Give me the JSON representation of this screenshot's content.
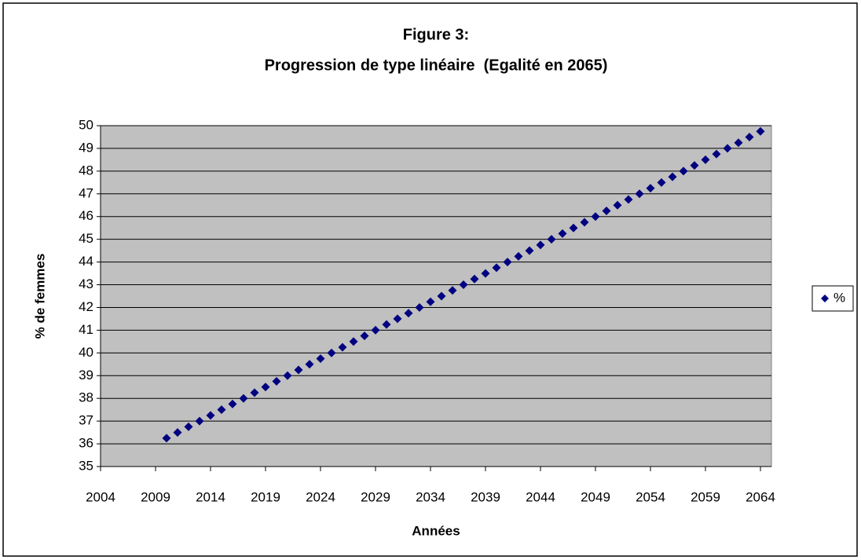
{
  "chart_data": {
    "type": "scatter",
    "title": [
      "Figure 3:",
      "Progression de type linéaire  (Egalité en 2065)"
    ],
    "xlabel": "Années",
    "ylabel": "% de femmes",
    "x": [
      2010,
      2011,
      2012,
      2013,
      2014,
      2015,
      2016,
      2017,
      2018,
      2019,
      2020,
      2021,
      2022,
      2023,
      2024,
      2025,
      2026,
      2027,
      2028,
      2029,
      2030,
      2031,
      2032,
      2033,
      2034,
      2035,
      2036,
      2037,
      2038,
      2039,
      2040,
      2041,
      2042,
      2043,
      2044,
      2045,
      2046,
      2047,
      2048,
      2049,
      2050,
      2051,
      2052,
      2053,
      2054,
      2055,
      2056,
      2057,
      2058,
      2059,
      2060,
      2061,
      2062,
      2063,
      2064
    ],
    "series": [
      {
        "name": "%",
        "color": "#000080",
        "values": [
          36.25,
          36.5,
          36.75,
          37,
          37.25,
          37.5,
          37.75,
          38,
          38.25,
          38.5,
          38.75,
          39,
          39.25,
          39.5,
          39.75,
          40,
          40.25,
          40.5,
          40.75,
          41,
          41.25,
          41.5,
          41.75,
          42,
          42.25,
          42.5,
          42.75,
          43,
          43.25,
          43.5,
          43.75,
          44,
          44.25,
          44.5,
          44.75,
          45,
          45.25,
          45.5,
          45.75,
          46,
          46.25,
          46.5,
          46.75,
          47,
          47.25,
          47.5,
          47.75,
          48,
          48.25,
          48.5,
          48.75,
          49,
          49.25,
          49.5,
          49.75
        ]
      }
    ],
    "xlim": [
      2004,
      2065
    ],
    "xticks": [
      2004,
      2009,
      2014,
      2019,
      2024,
      2029,
      2034,
      2039,
      2044,
      2049,
      2054,
      2059,
      2064
    ],
    "ylim": [
      35,
      50
    ],
    "yticks": [
      35,
      36,
      37,
      38,
      39,
      40,
      41,
      42,
      43,
      44,
      45,
      46,
      47,
      48,
      49,
      50
    ],
    "grid": true,
    "legend": "right",
    "plot_background": "#c0c0c0"
  }
}
